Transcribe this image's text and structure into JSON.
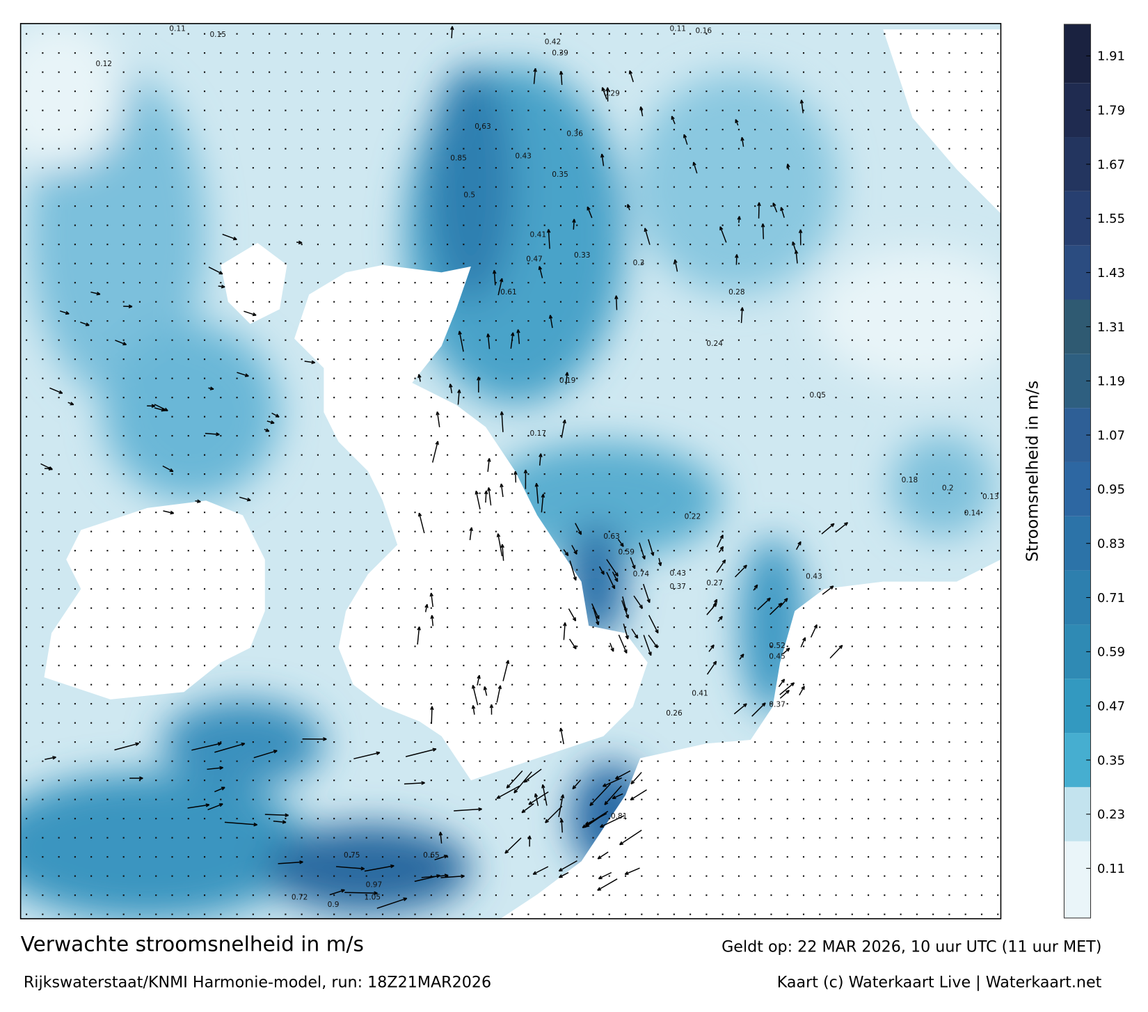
{
  "footer": {
    "title": "Verwachte stroomsnelheid in m/s",
    "source": "Rijkswaterstaat/KNMI Harmonie-model, run: 18Z21MAR2026",
    "valid": "Geldt op: 22 MAR 2026, 10 uur UTC (11 uur MET)",
    "credit": "Kaart (c) Waterkaart Live | Waterkaart.net"
  },
  "colorbar": {
    "label": "Stroomsnelheid in m/s",
    "lim": [
      0,
      1.98
    ],
    "band": 0.12,
    "ticks": [
      0.11,
      0.23,
      0.35,
      0.47,
      0.59,
      0.71,
      0.83,
      0.95,
      1.07,
      1.19,
      1.31,
      1.43,
      1.55,
      1.67,
      1.79,
      1.91
    ],
    "colors": [
      "#eaf5f9",
      "#c3e3ee",
      "#46aed0",
      "#3399c0",
      "#2f8ab4",
      "#2d7fae",
      "#2c73a8",
      "#2d67a2",
      "#2e5f96",
      "#2e5f80",
      "#2f5a72",
      "#2b4c80",
      "#273f70",
      "#23355f",
      "#1f2b50",
      "#1a2240"
    ]
  },
  "map": {
    "labels": [
      "0.11",
      "0.15",
      "0.12",
      "0.42",
      "0.39",
      "0.36",
      "0.11",
      "0.16",
      "0.63",
      "0.85",
      "0.5",
      "0.43",
      "0.35",
      "0.41",
      "0.47",
      "0.61",
      "0.33",
      "0.29",
      "0.19",
      "0.17",
      "0.22",
      "0.63",
      "0.59",
      "0.74",
      "0.43",
      "0.37",
      "0.27",
      "0.52",
      "0.45",
      "0.26",
      "0.41",
      "0.81",
      "0.75",
      "0.97",
      "1.05",
      "0.9",
      "0.72",
      "0.65",
      "0.37",
      "0.43",
      "0.14",
      "0.2",
      "0.18",
      "0.13",
      "0.05",
      "0.3",
      "0.28",
      "0.24"
    ]
  }
}
